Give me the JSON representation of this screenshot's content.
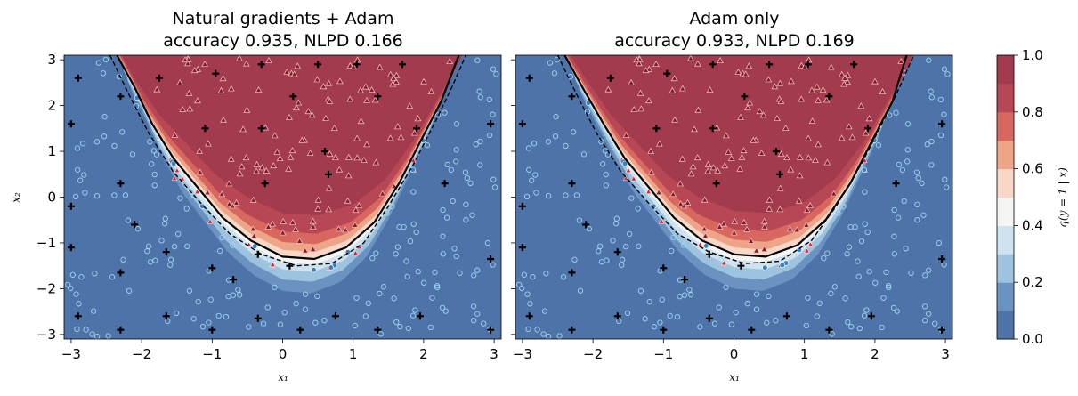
{
  "chart_data": [
    {
      "type": "heatmap",
      "panel": "left",
      "title_lines": [
        "Natural gradients + Adam",
        "accuracy 0.935, NLPD 0.166"
      ],
      "xlabel": "x₁",
      "ylabel": "x₂",
      "xlim": [
        -3.1,
        3.1
      ],
      "ylim": [
        -3.1,
        3.1
      ],
      "xticks": [
        -3,
        -2,
        -1,
        0,
        1,
        2,
        3
      ],
      "yticks": [
        -3,
        -2,
        -1,
        0,
        1,
        2,
        3
      ],
      "decision_boundary_solid": [
        [
          -2.35,
          3.1
        ],
        [
          -2.1,
          2.4
        ],
        [
          -1.85,
          1.6
        ],
        [
          -1.55,
          0.85
        ],
        [
          -1.2,
          0.2
        ],
        [
          -0.85,
          -0.45
        ],
        [
          -0.45,
          -0.95
        ],
        [
          0.0,
          -1.3
        ],
        [
          0.45,
          -1.35
        ],
        [
          0.9,
          -1.1
        ],
        [
          1.3,
          -0.55
        ],
        [
          1.65,
          0.3
        ],
        [
          1.95,
          1.2
        ],
        [
          2.25,
          2.1
        ],
        [
          2.5,
          3.1
        ]
      ],
      "decision_boundary_dashed": [
        [
          -2.45,
          3.1
        ],
        [
          -2.2,
          2.3
        ],
        [
          -1.9,
          1.4
        ],
        [
          -1.55,
          0.55
        ],
        [
          -1.15,
          -0.15
        ],
        [
          -0.75,
          -0.8
        ],
        [
          -0.3,
          -1.25
        ],
        [
          0.2,
          -1.5
        ],
        [
          0.7,
          -1.45
        ],
        [
          1.15,
          -1.0
        ],
        [
          1.5,
          -0.2
        ],
        [
          1.85,
          0.7
        ],
        [
          2.15,
          1.6
        ],
        [
          2.4,
          2.4
        ],
        [
          2.6,
          3.1
        ]
      ],
      "crosses": [
        [
          -2.9,
          2.6
        ],
        [
          -2.3,
          2.2
        ],
        [
          -3.0,
          1.6
        ],
        [
          -2.3,
          0.3
        ],
        [
          -3.0,
          -0.2
        ],
        [
          -2.1,
          -0.6
        ],
        [
          -3.0,
          -1.1
        ],
        [
          -1.65,
          -1.2
        ],
        [
          -2.3,
          -1.65
        ],
        [
          -2.9,
          -2.6
        ],
        [
          -2.3,
          -2.9
        ],
        [
          -1.65,
          -2.6
        ],
        [
          -1.0,
          -2.9
        ],
        [
          -0.7,
          -1.8
        ],
        [
          -1.0,
          -1.55
        ],
        [
          -0.35,
          -1.25
        ],
        [
          0.1,
          -1.5
        ],
        [
          -0.35,
          -2.65
        ],
        [
          0.25,
          -2.9
        ],
        [
          0.75,
          -2.6
        ],
        [
          1.35,
          -2.9
        ],
        [
          1.95,
          -2.6
        ],
        [
          2.3,
          0.3
        ],
        [
          2.95,
          1.6
        ],
        [
          2.95,
          -1.35
        ],
        [
          2.95,
          -2.9
        ],
        [
          -0.3,
          2.9
        ],
        [
          0.5,
          2.9
        ],
        [
          1.05,
          2.9
        ],
        [
          1.7,
          2.9
        ],
        [
          -1.75,
          2.6
        ],
        [
          -1.1,
          1.5
        ],
        [
          -0.3,
          1.5
        ],
        [
          -0.25,
          0.3
        ],
        [
          0.6,
          1.0
        ],
        [
          1.9,
          1.5
        ],
        [
          1.35,
          2.2
        ],
        [
          -0.95,
          2.7
        ],
        [
          0.15,
          2.2
        ],
        [
          0.65,
          0.5
        ]
      ]
    },
    {
      "type": "heatmap",
      "panel": "right",
      "title_lines": [
        "Adam only",
        "accuracy 0.933, NLPD 0.169"
      ],
      "xlabel": "x₁",
      "xlim": [
        -3.1,
        3.1
      ],
      "ylim": [
        -3.1,
        3.1
      ],
      "xticks": [
        -3,
        -2,
        -1,
        0,
        1,
        2,
        3
      ],
      "decision_boundary_solid": [
        [
          -2.4,
          3.1
        ],
        [
          -2.15,
          2.4
        ],
        [
          -1.85,
          1.6
        ],
        [
          -1.55,
          0.85
        ],
        [
          -1.2,
          0.2
        ],
        [
          -0.85,
          -0.45
        ],
        [
          -0.45,
          -0.95
        ],
        [
          0.0,
          -1.25
        ],
        [
          0.45,
          -1.3
        ],
        [
          0.9,
          -1.05
        ],
        [
          1.3,
          -0.5
        ],
        [
          1.65,
          0.3
        ],
        [
          1.95,
          1.2
        ],
        [
          2.25,
          2.1
        ],
        [
          2.45,
          3.1
        ]
      ],
      "decision_boundary_dashed": [
        [
          -2.5,
          3.1
        ],
        [
          -2.25,
          2.3
        ],
        [
          -1.95,
          1.4
        ],
        [
          -1.6,
          0.55
        ],
        [
          -1.2,
          -0.15
        ],
        [
          -0.8,
          -0.8
        ],
        [
          -0.35,
          -1.2
        ],
        [
          0.15,
          -1.45
        ],
        [
          0.65,
          -1.4
        ],
        [
          1.1,
          -0.95
        ],
        [
          1.45,
          -0.2
        ],
        [
          1.8,
          0.7
        ],
        [
          2.1,
          1.6
        ],
        [
          2.35,
          2.4
        ],
        [
          2.55,
          3.1
        ]
      ],
      "crosses": [
        [
          -2.9,
          2.6
        ],
        [
          -2.3,
          2.2
        ],
        [
          -3.0,
          1.6
        ],
        [
          -2.3,
          0.3
        ],
        [
          -3.0,
          -0.2
        ],
        [
          -2.1,
          -0.6
        ],
        [
          -3.0,
          -1.1
        ],
        [
          -1.65,
          -1.2
        ],
        [
          -2.3,
          -1.65
        ],
        [
          -2.9,
          -2.6
        ],
        [
          -2.3,
          -2.9
        ],
        [
          -1.65,
          -2.6
        ],
        [
          -1.0,
          -2.9
        ],
        [
          -0.7,
          -1.8
        ],
        [
          -1.0,
          -1.55
        ],
        [
          -0.35,
          -1.25
        ],
        [
          0.1,
          -1.5
        ],
        [
          -0.35,
          -2.65
        ],
        [
          0.25,
          -2.9
        ],
        [
          0.75,
          -2.6
        ],
        [
          1.35,
          -2.9
        ],
        [
          1.95,
          -2.6
        ],
        [
          2.3,
          0.3
        ],
        [
          2.95,
          1.6
        ],
        [
          2.95,
          -1.35
        ],
        [
          2.95,
          -2.9
        ],
        [
          -0.3,
          2.9
        ],
        [
          0.5,
          2.9
        ],
        [
          1.05,
          2.9
        ],
        [
          1.7,
          2.9
        ],
        [
          -1.75,
          2.6
        ],
        [
          -1.1,
          1.5
        ],
        [
          -0.3,
          1.5
        ],
        [
          -0.25,
          0.3
        ],
        [
          0.6,
          1.0
        ],
        [
          1.9,
          1.5
        ],
        [
          1.35,
          2.2
        ],
        [
          -0.95,
          2.7
        ],
        [
          0.15,
          2.2
        ],
        [
          0.65,
          0.5
        ]
      ]
    }
  ],
  "colorbar": {
    "label": "q(y = 1 | x)",
    "ticks": [
      "0.0",
      "0.2",
      "0.4",
      "0.6",
      "0.8",
      "1.0"
    ],
    "levels": [
      "#4d73a8",
      "#6a93c2",
      "#9ec3de",
      "#cfe2ef",
      "#f5f5f4",
      "#f9d7c7",
      "#eea487",
      "#d7675f",
      "#b84755",
      "#a33b4e"
    ]
  },
  "colors": {
    "low": "#4d73a8",
    "high": "#a33b4e",
    "circle_fill": "#1f4f86",
    "circle_edge": "#9fd6f0",
    "triangle_fill": "#7a1e2b",
    "triangle_edge": "#f4b6b6",
    "boundary": "#000000"
  }
}
